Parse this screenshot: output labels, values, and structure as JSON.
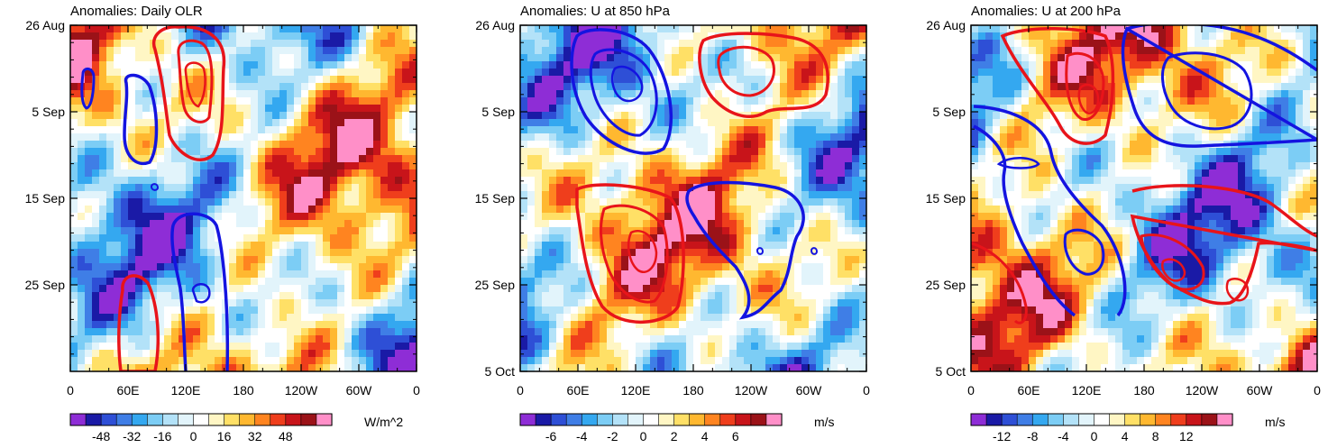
{
  "chart_data": [
    {
      "type": "heatmap",
      "title": "Anomalies: Daily OLR",
      "x_tick_labels": [
        "0",
        "60E",
        "120E",
        "180",
        "120W",
        "60W",
        "0"
      ],
      "y_tick_labels": [
        "26 Aug",
        "5 Sep",
        "15 Sep",
        "25 Sep"
      ],
      "xlim": [
        0,
        360
      ],
      "ylim_days": [
        0,
        40
      ],
      "y_tick_days": [
        0,
        10,
        20,
        30
      ],
      "colorbar": {
        "tick_labels": [
          "-48",
          "-32",
          "-16",
          "0",
          "16",
          "32",
          "48"
        ],
        "levels": 16,
        "unit": "W/m^2"
      }
    },
    {
      "type": "heatmap",
      "title": "Anomalies: U at 850 hPa",
      "x_tick_labels": [
        "0",
        "60E",
        "120E",
        "180",
        "120W",
        "60W",
        "0"
      ],
      "y_tick_labels": [
        "26 Aug",
        "5 Sep",
        "15 Sep",
        "25 Sep",
        "5 Oct"
      ],
      "xlim": [
        0,
        360
      ],
      "ylim_days": [
        0,
        40
      ],
      "y_tick_days": [
        0,
        10,
        20,
        30,
        40
      ],
      "colorbar": {
        "tick_labels": [
          "-6",
          "-4",
          "-2",
          "0",
          "2",
          "4",
          "6"
        ],
        "levels": 16,
        "unit": "m/s"
      }
    },
    {
      "type": "heatmap",
      "title": "Anomalies: U at 200 hPa",
      "x_tick_labels": [
        "0",
        "60E",
        "120E",
        "180",
        "120W",
        "60W",
        "0"
      ],
      "y_tick_labels": [
        "26 Aug",
        "5 Sep",
        "15 Sep",
        "25 Sep",
        "5 Oct"
      ],
      "xlim": [
        0,
        360
      ],
      "ylim_days": [
        0,
        40
      ],
      "y_tick_days": [
        0,
        10,
        20,
        30,
        40
      ],
      "colorbar": {
        "tick_labels": [
          "-12",
          "-8",
          "-4",
          "0",
          "4",
          "8",
          "12"
        ],
        "levels": 16,
        "unit": "m/s"
      }
    }
  ],
  "palette": [
    "#8e2dd6",
    "#1a1aa6",
    "#2e4fd6",
    "#3f7ee6",
    "#34a8f0",
    "#7ccdf5",
    "#b3e2f8",
    "#e2f4fb",
    "#ffffff",
    "#fff6c4",
    "#ffe066",
    "#ffb830",
    "#ff8420",
    "#ef3e1c",
    "#c8141a",
    "#9b1218",
    "#ff8fc8"
  ]
}
